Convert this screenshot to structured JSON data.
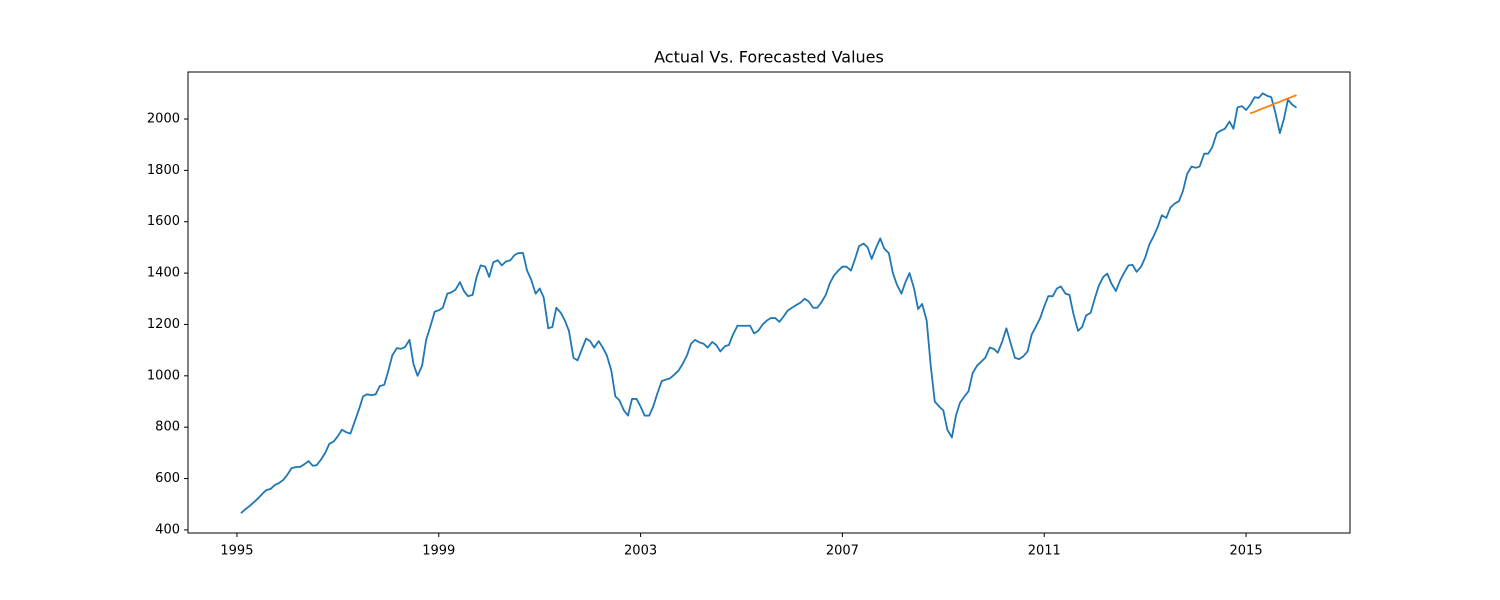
{
  "chart_data": {
    "type": "line",
    "title": "Actual Vs. Forecasted Values",
    "xlim": [
      1994.03,
      2017.06
    ],
    "xticks": [
      1995,
      1999,
      2003,
      2007,
      2011,
      2015
    ],
    "ylim": [
      388,
      2183
    ],
    "yticks": [
      400,
      600,
      800,
      1000,
      1200,
      1400,
      1600,
      1800,
      2000
    ],
    "grid": false,
    "series": [
      {
        "color": "#1f77b4",
        "x": [
          1995.08,
          1995.17,
          1995.25,
          1995.33,
          1995.42,
          1995.5,
          1995.58,
          1995.67,
          1995.75,
          1995.83,
          1995.92,
          1996.0,
          1996.08,
          1996.17,
          1996.25,
          1996.33,
          1996.42,
          1996.5,
          1996.58,
          1996.67,
          1996.75,
          1996.83,
          1996.92,
          1997.0,
          1997.08,
          1997.17,
          1997.25,
          1997.33,
          1997.42,
          1997.5,
          1997.58,
          1997.67,
          1997.75,
          1997.83,
          1997.92,
          1998.0,
          1998.08,
          1998.17,
          1998.25,
          1998.33,
          1998.42,
          1998.5,
          1998.58,
          1998.67,
          1998.75,
          1998.83,
          1998.92,
          1999.0,
          1999.08,
          1999.17,
          1999.25,
          1999.33,
          1999.42,
          1999.5,
          1999.58,
          1999.67,
          1999.75,
          1999.83,
          1999.92,
          2000.0,
          2000.08,
          2000.17,
          2000.25,
          2000.33,
          2000.42,
          2000.5,
          2000.58,
          2000.67,
          2000.75,
          2000.83,
          2000.92,
          2001.0,
          2001.08,
          2001.17,
          2001.25,
          2001.33,
          2001.42,
          2001.5,
          2001.58,
          2001.67,
          2001.75,
          2001.83,
          2001.92,
          2002.0,
          2002.08,
          2002.17,
          2002.25,
          2002.33,
          2002.42,
          2002.5,
          2002.58,
          2002.67,
          2002.75,
          2002.83,
          2002.92,
          2003.0,
          2003.08,
          2003.17,
          2003.25,
          2003.33,
          2003.42,
          2003.5,
          2003.58,
          2003.67,
          2003.75,
          2003.83,
          2003.92,
          2004.0,
          2004.08,
          2004.17,
          2004.25,
          2004.33,
          2004.42,
          2004.5,
          2004.58,
          2004.67,
          2004.75,
          2004.83,
          2004.92,
          2005.0,
          2005.08,
          2005.17,
          2005.25,
          2005.33,
          2005.42,
          2005.5,
          2005.58,
          2005.67,
          2005.75,
          2005.83,
          2005.92,
          2006.0,
          2006.08,
          2006.17,
          2006.25,
          2006.33,
          2006.42,
          2006.5,
          2006.58,
          2006.67,
          2006.75,
          2006.83,
          2006.92,
          2007.0,
          2007.08,
          2007.17,
          2007.25,
          2007.33,
          2007.42,
          2007.5,
          2007.58,
          2007.67,
          2007.75,
          2007.83,
          2007.92,
          2008.0,
          2008.08,
          2008.17,
          2008.25,
          2008.33,
          2008.42,
          2008.5,
          2008.58,
          2008.67,
          2008.75,
          2008.83,
          2008.92,
          2009.0,
          2009.08,
          2009.17,
          2009.25,
          2009.33,
          2009.42,
          2009.5,
          2009.58,
          2009.67,
          2009.75,
          2009.83,
          2009.92,
          2010.0,
          2010.08,
          2010.17,
          2010.25,
          2010.33,
          2010.42,
          2010.5,
          2010.58,
          2010.67,
          2010.75,
          2010.83,
          2010.92,
          2011.0,
          2011.08,
          2011.17,
          2011.25,
          2011.33,
          2011.42,
          2011.5,
          2011.58,
          2011.67,
          2011.75,
          2011.83,
          2011.92,
          2012.0,
          2012.08,
          2012.17,
          2012.25,
          2012.33,
          2012.42,
          2012.5,
          2012.58,
          2012.67,
          2012.75,
          2012.83,
          2012.92,
          2013.0,
          2013.08,
          2013.17,
          2013.25,
          2013.33,
          2013.42,
          2013.5,
          2013.58,
          2013.67,
          2013.75,
          2013.83,
          2013.92,
          2014.0,
          2014.08,
          2014.17,
          2014.25,
          2014.33,
          2014.42,
          2014.5,
          2014.58,
          2014.67,
          2014.75,
          2014.83,
          2014.92,
          2015.0,
          2015.08,
          2015.17,
          2015.25,
          2015.33,
          2015.42,
          2015.5,
          2015.58,
          2015.67,
          2015.75,
          2015.83,
          2015.92,
          2016.0
        ],
        "values": [
          465,
          481,
          493,
          507,
          523,
          540,
          555,
          560,
          575,
          582,
          595,
          615,
          640,
          645,
          645,
          655,
          668,
          650,
          652,
          675,
          700,
          735,
          745,
          765,
          790,
          780,
          775,
          820,
          870,
          920,
          928,
          925,
          928,
          960,
          965,
          1020,
          1080,
          1108,
          1105,
          1112,
          1140,
          1045,
          1000,
          1040,
          1140,
          1190,
          1250,
          1255,
          1265,
          1320,
          1325,
          1335,
          1365,
          1330,
          1310,
          1315,
          1385,
          1430,
          1425,
          1385,
          1442,
          1450,
          1430,
          1445,
          1450,
          1470,
          1478,
          1478,
          1410,
          1375,
          1320,
          1340,
          1305,
          1185,
          1190,
          1265,
          1245,
          1215,
          1175,
          1070,
          1060,
          1100,
          1145,
          1135,
          1110,
          1135,
          1110,
          1080,
          1020,
          920,
          905,
          865,
          845,
          910,
          910,
          880,
          845,
          845,
          880,
          930,
          980,
          985,
          990,
          1005,
          1020,
          1045,
          1080,
          1125,
          1140,
          1130,
          1125,
          1110,
          1132,
          1120,
          1095,
          1115,
          1120,
          1160,
          1195,
          1195,
          1195,
          1195,
          1165,
          1175,
          1200,
          1215,
          1225,
          1225,
          1210,
          1230,
          1255,
          1265,
          1275,
          1285,
          1300,
          1290,
          1265,
          1265,
          1285,
          1315,
          1360,
          1390,
          1410,
          1425,
          1425,
          1410,
          1455,
          1505,
          1515,
          1500,
          1455,
          1500,
          1535,
          1495,
          1478,
          1400,
          1355,
          1320,
          1365,
          1400,
          1340,
          1260,
          1280,
          1215,
          1040,
          900,
          880,
          865,
          790,
          760,
          845,
          895,
          920,
          940,
          1010,
          1040,
          1055,
          1070,
          1110,
          1105,
          1090,
          1135,
          1185,
          1130,
          1070,
          1065,
          1075,
          1095,
          1160,
          1190,
          1225,
          1270,
          1310,
          1310,
          1340,
          1348,
          1320,
          1315,
          1240,
          1175,
          1190,
          1235,
          1245,
          1300,
          1350,
          1385,
          1398,
          1360,
          1330,
          1370,
          1400,
          1430,
          1432,
          1405,
          1425,
          1460,
          1510,
          1545,
          1580,
          1625,
          1615,
          1655,
          1670,
          1680,
          1720,
          1785,
          1815,
          1810,
          1815,
          1865,
          1865,
          1890,
          1945,
          1955,
          1962,
          1990,
          1962,
          2045,
          2050,
          2035,
          2055,
          2085,
          2082,
          2100,
          2090,
          2085,
          2025,
          1945,
          2000,
          2075,
          2055,
          2044
        ]
      },
      {
        "color": "#ff7f0e",
        "x": [
          2015.08,
          2015.17,
          2015.25,
          2015.33,
          2015.42,
          2015.5,
          2015.58,
          2015.67,
          2015.75,
          2015.83,
          2015.92,
          2016.0
        ],
        "values": [
          2022,
          2028,
          2035,
          2041,
          2048,
          2054,
          2061,
          2067,
          2074,
          2080,
          2087,
          2093
        ]
      }
    ]
  }
}
